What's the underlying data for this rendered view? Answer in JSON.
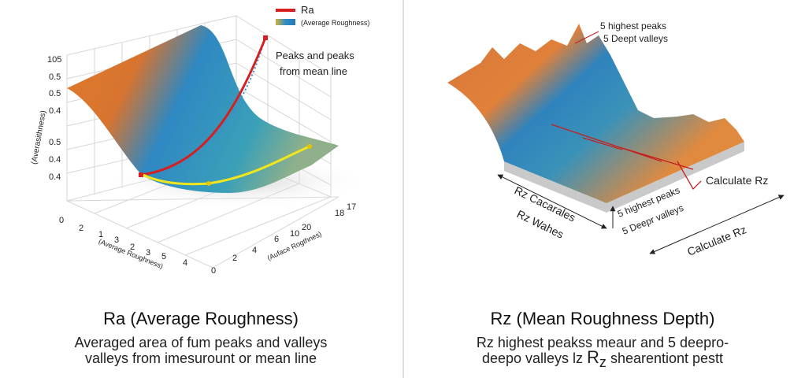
{
  "left": {
    "legend": {
      "line": "Ra",
      "swatch": "(Average Roughness)"
    },
    "y_axis": {
      "label": "(Averasithness)",
      "ticks": [
        "105",
        "0.5",
        "0.5",
        "0.4",
        "0.5",
        "0.4",
        "0.4"
      ]
    },
    "x_axis": {
      "label": "(Average Roughness)",
      "ticks": [
        "0",
        "2",
        "1",
        "3",
        "2",
        "3",
        "5",
        "4"
      ]
    },
    "z_axis": {
      "label": "(Auface Rogthnes)",
      "ticks": [
        "0",
        "2",
        "4",
        "6",
        "10",
        "20",
        "18",
        "17"
      ]
    },
    "annotation": [
      "Peaks and peaks",
      "from mean line"
    ],
    "title": "Ra (Average Roughness)",
    "caption": [
      "Averaged area of fum peaks and valleys",
      "valleys from imesurount or mean line"
    ]
  },
  "right": {
    "top_labels": [
      "5 highest peaks",
      "5 Deept valleys"
    ],
    "calc_label": "Calculate Rz",
    "left_labels": [
      "Rz Cacarales",
      "Rz Wahes"
    ],
    "mid_labels": [
      "5 highest peaks",
      "5 Deepr valleys"
    ],
    "bottom_label": "Calculate Rz",
    "title": "Rz (Mean Roughness Depth)",
    "caption": [
      "Rz highest peakss meaur and 5 deepro-",
      "deepo valleys lz",
      "R",
      "z",
      "shearentiont pestt"
    ]
  }
}
